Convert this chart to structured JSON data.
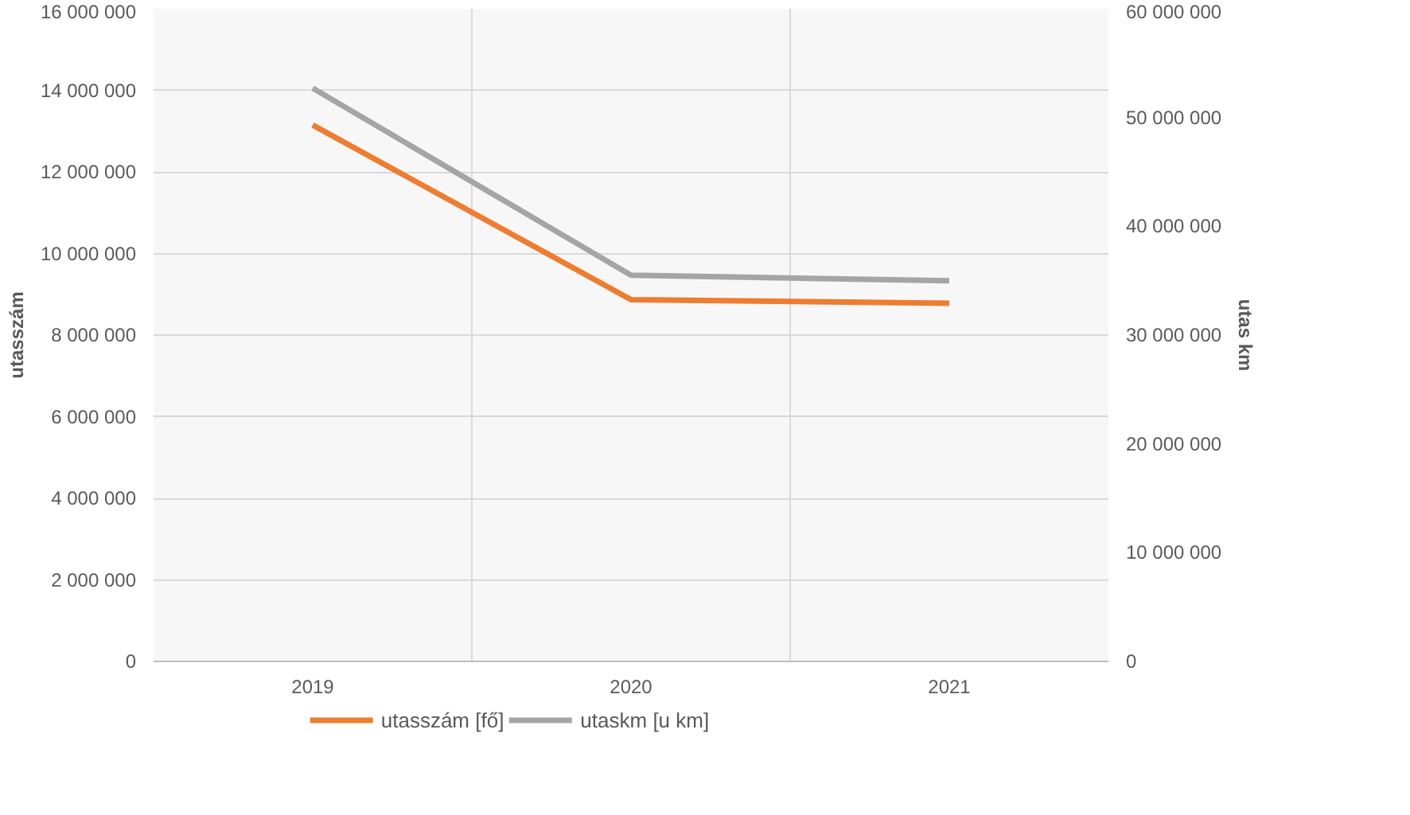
{
  "chart_data": {
    "type": "line",
    "ylabel": "utasszám",
    "y2label": "utas km",
    "categories": [
      "2019",
      "2020",
      "2021"
    ],
    "series": [
      {
        "name": "utasszám [fő]",
        "color": "#ed7d31",
        "values": [
          13150000,
          8870000,
          8780000
        ]
      },
      {
        "name": "utaskm [u km]",
        "color": "#a5a5a5",
        "values": [
          52700000,
          35500000,
          35000000
        ],
        "axis": "y2"
      }
    ],
    "ylim": [
      0,
      16000000
    ],
    "yticks": [
      {
        "value": 0,
        "label": "0"
      },
      {
        "value": 2000000,
        "label": "2 000 000"
      },
      {
        "value": 4000000,
        "label": "4 000 000"
      },
      {
        "value": 6000000,
        "label": "6 000 000"
      },
      {
        "value": 8000000,
        "label": "8 000 000"
      },
      {
        "value": 10000000,
        "label": "10 000 000"
      },
      {
        "value": 12000000,
        "label": "12 000 000"
      },
      {
        "value": 14000000,
        "label": "14 000 000"
      },
      {
        "value": 16000000,
        "label": "16 000 000"
      }
    ],
    "y2lim": [
      0,
      60000000
    ],
    "y2ticks": [
      {
        "value": 0,
        "label": "0"
      },
      {
        "value": 10000000,
        "label": "10 000 000"
      },
      {
        "value": 20000000,
        "label": "20 000 000"
      },
      {
        "value": 30000000,
        "label": "30 000 000"
      },
      {
        "value": 40000000,
        "label": "40 000 000"
      },
      {
        "value": 50000000,
        "label": "50 000 000"
      },
      {
        "value": 60000000,
        "label": "60 000 000"
      }
    ],
    "grid": true,
    "legend": "bottom",
    "marker": "none",
    "line_style": "solid"
  }
}
